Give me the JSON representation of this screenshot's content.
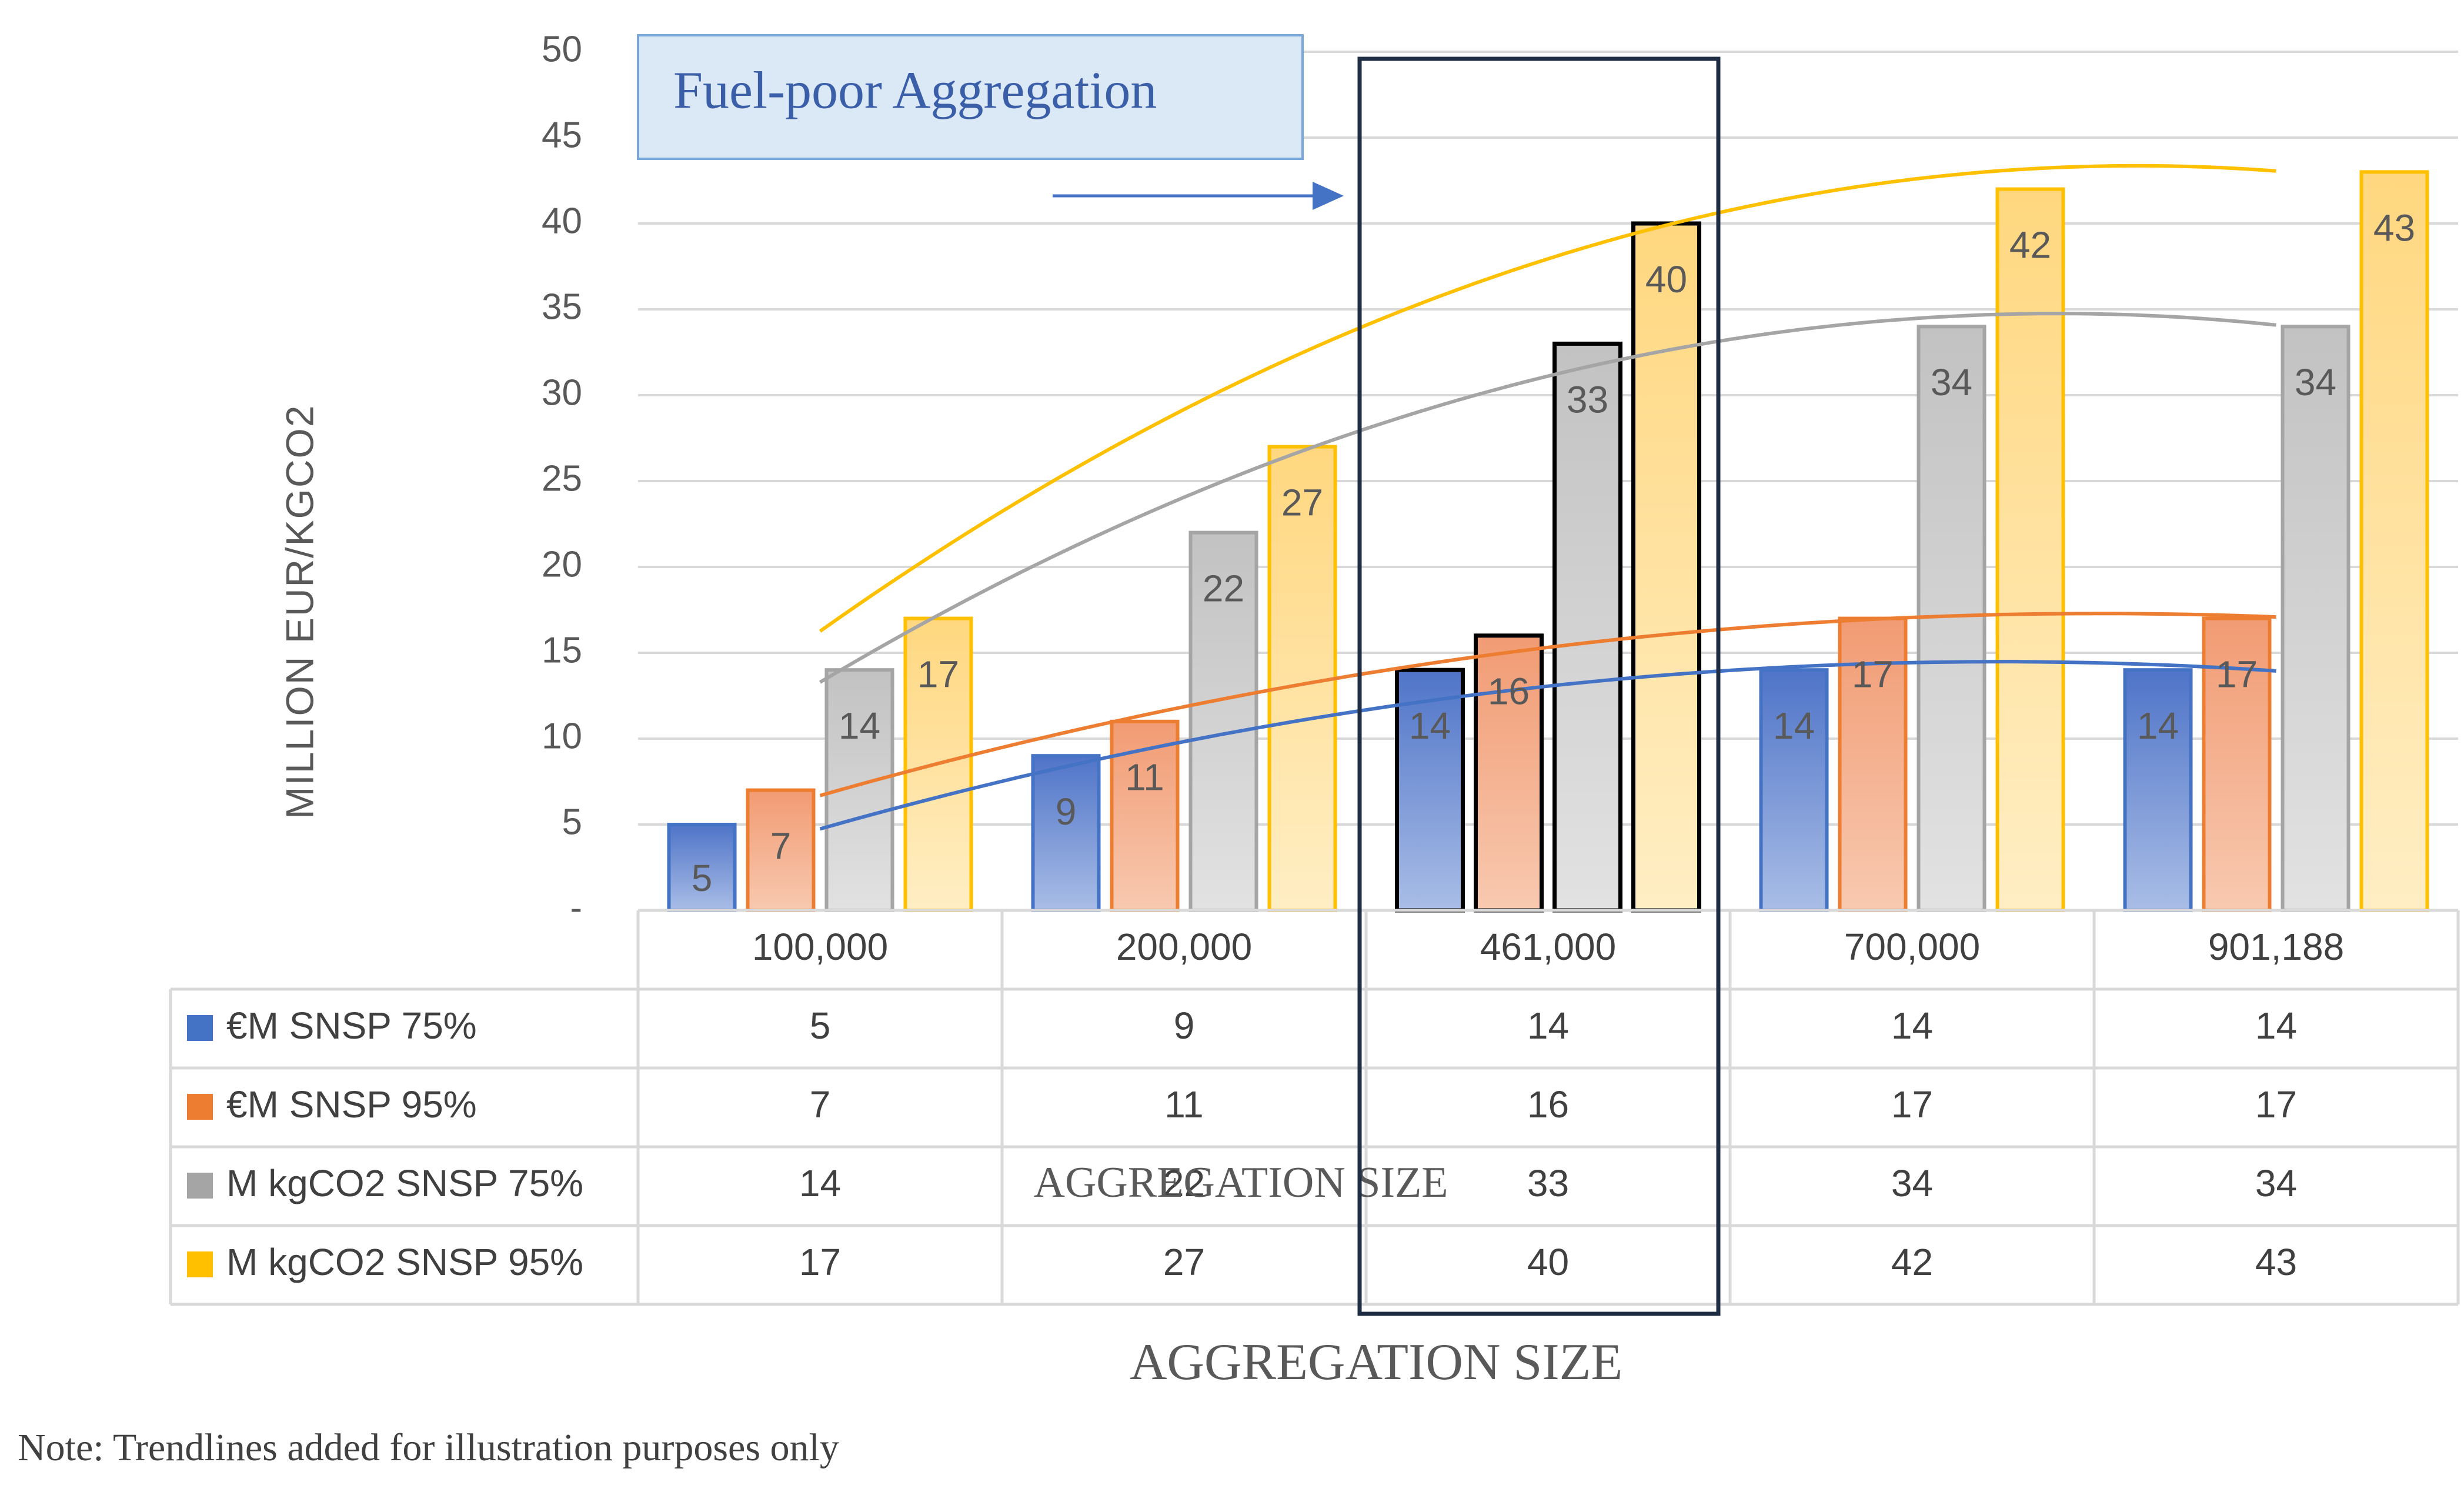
{
  "chart_data": {
    "type": "bar",
    "title": "",
    "xlabel": "AGGREGATION SIZE",
    "ylabel": "MILLION EUR/KGCO2",
    "ylim": [
      0,
      50
    ],
    "yticks": [
      "-",
      "5",
      "10",
      "15",
      "20",
      "25",
      "30",
      "35",
      "40",
      "45",
      "50"
    ],
    "categories": [
      "100,000",
      "200,000",
      "461,000",
      "700,000",
      "901,188"
    ],
    "series": [
      {
        "name": "€M SNSP 75%",
        "values": [
          5,
          9,
          14,
          14,
          14
        ],
        "color": "#4472c4",
        "fill_top": "#4f74c8",
        "fill_bottom": "#a9bde6"
      },
      {
        "name": "€M SNSP 95%",
        "values": [
          7,
          11,
          16,
          17,
          17
        ],
        "color": "#ed7d31",
        "fill_top": "#f19b73",
        "fill_bottom": "#f8c9b0"
      },
      {
        "name": "M kgCO2 SNSP 75%",
        "values": [
          14,
          22,
          33,
          34,
          34
        ],
        "color": "#a5a5a5",
        "fill_top": "#c2c2c2",
        "fill_bottom": "#e2e2e2"
      },
      {
        "name": "M kgCO2 SNSP 95%",
        "values": [
          17,
          27,
          40,
          42,
          43
        ],
        "color": "#ffc000",
        "fill_top": "#ffd77f",
        "fill_bottom": "#ffeec4"
      }
    ],
    "highlight_category": "461,000",
    "annotation": "Fuel-poor Aggregation",
    "ghost_xlabel": "AGGREGATION SIZE",
    "note": "Note: Trendlines added for illustration purposes only",
    "trendlines": "quadratic, one per series (illustrative)"
  }
}
